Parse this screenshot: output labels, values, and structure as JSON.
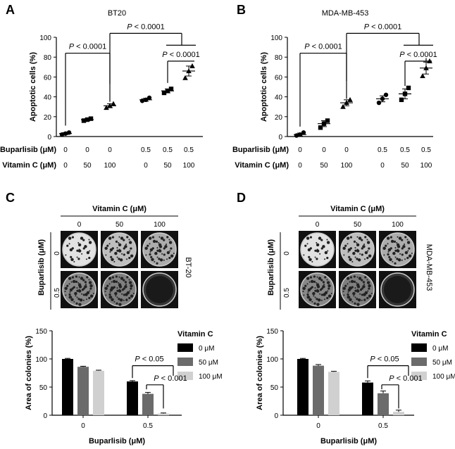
{
  "panels": {
    "A": {
      "letter": "A"
    },
    "B": {
      "letter": "B"
    },
    "C": {
      "letter": "C"
    },
    "D": {
      "letter": "D"
    }
  },
  "chart_data": [
    {
      "id": "A",
      "type": "scatter",
      "title": "BT20",
      "ylabel": "Apoptotic cells (%)",
      "ylim": [
        0,
        100
      ],
      "yticks": [
        0,
        20,
        40,
        60,
        80,
        100
      ],
      "row_labels": [
        "Buparlisib (μM)",
        "Vitamin C (μM)"
      ],
      "groups": [
        {
          "buparlisib": "0",
          "vitc": "0",
          "marker": "circle",
          "mean": 3,
          "sem": 1,
          "points": [
            2,
            3,
            4
          ]
        },
        {
          "buparlisib": "0",
          "vitc": "50",
          "marker": "square",
          "mean": 17,
          "sem": 1,
          "points": [
            16,
            17,
            18
          ]
        },
        {
          "buparlisib": "0",
          "vitc": "100",
          "marker": "triangle",
          "mean": 31,
          "sem": 2,
          "points": [
            29,
            31,
            33
          ]
        },
        {
          "buparlisib": "0.5",
          "vitc": "0",
          "marker": "circle",
          "mean": 37,
          "sem": 1.5,
          "points": [
            36,
            37,
            39
          ]
        },
        {
          "buparlisib": "0.5",
          "vitc": "50",
          "marker": "square",
          "mean": 46,
          "sem": 2,
          "points": [
            44,
            46,
            48
          ]
        },
        {
          "buparlisib": "0.5",
          "vitc": "100",
          "marker": "triangle",
          "mean": 66,
          "sem": 5,
          "points": [
            59,
            66,
            71
          ]
        }
      ],
      "annotations": [
        "P < 0.0001",
        "P < 0.0001",
        "P < 0.0001"
      ]
    },
    {
      "id": "B",
      "type": "scatter",
      "title": "MDA-MB-453",
      "ylabel": "Apoptotic cells (%)",
      "ylim": [
        0,
        100
      ],
      "yticks": [
        0,
        20,
        40,
        60,
        80,
        100
      ],
      "row_labels": [
        "Buparlisib (μM)",
        "Vitamin C (μM)"
      ],
      "groups": [
        {
          "buparlisib": "0",
          "vitc": "0",
          "marker": "circle",
          "mean": 2,
          "sem": 1.5,
          "points": [
            1,
            2,
            4
          ]
        },
        {
          "buparlisib": "0",
          "vitc": "50",
          "marker": "square",
          "mean": 13,
          "sem": 3,
          "points": [
            9,
            13,
            16
          ]
        },
        {
          "buparlisib": "0",
          "vitc": "100",
          "marker": "triangle",
          "mean": 34,
          "sem": 3,
          "points": [
            30,
            34,
            37
          ]
        },
        {
          "buparlisib": "0.5",
          "vitc": "0",
          "marker": "circle",
          "mean": 38,
          "sem": 3,
          "points": [
            34,
            38,
            42
          ]
        },
        {
          "buparlisib": "0.5",
          "vitc": "50",
          "marker": "square",
          "mean": 43,
          "sem": 5,
          "points": [
            37,
            43,
            49
          ]
        },
        {
          "buparlisib": "0.5",
          "vitc": "100",
          "marker": "triangle",
          "mean": 69,
          "sem": 6,
          "points": [
            61,
            69,
            76
          ]
        }
      ],
      "annotations": [
        "P < 0.0001",
        "P < 0.0001",
        "P < 0.0001"
      ]
    },
    {
      "id": "C",
      "type": "bar",
      "cell_line": "BT-20",
      "ylabel": "Area of colonies (%)",
      "xlabel": "Buparlisib (μM)",
      "ylim": [
        0,
        150
      ],
      "yticks": [
        0,
        50,
        100,
        150
      ],
      "categories": [
        "0",
        "0.5"
      ],
      "series": [
        {
          "name": "0 μM",
          "color": "#000000",
          "values": [
            100,
            60
          ],
          "errors": [
            1,
            1.5
          ]
        },
        {
          "name": "50 μM",
          "color": "#6b6b6b",
          "values": [
            86,
            38
          ],
          "errors": [
            1,
            2.5
          ]
        },
        {
          "name": "100 μM",
          "color": "#d0d0d0",
          "values": [
            79,
            3
          ],
          "errors": [
            1,
            1
          ]
        }
      ],
      "legend_title": "Vitamin C",
      "annotations": [
        "P < 0.05",
        "P < 0.001"
      ],
      "image_header": "Vitamin C (μM)",
      "image_cols": [
        "0",
        "50",
        "100"
      ],
      "image_row_label": "Buparlisib (μM)",
      "image_rows": [
        "0",
        "0.5"
      ]
    },
    {
      "id": "D",
      "type": "bar",
      "cell_line": "MDA-MB-453",
      "ylabel": "Area of colonies (%)",
      "xlabel": "Buparlisib (μM)",
      "ylim": [
        0,
        150
      ],
      "yticks": [
        0,
        50,
        100,
        150
      ],
      "categories": [
        "0",
        "0.5"
      ],
      "series": [
        {
          "name": "0 μM",
          "color": "#000000",
          "values": [
            100,
            58
          ],
          "errors": [
            1,
            3
          ]
        },
        {
          "name": "50 μM",
          "color": "#6b6b6b",
          "values": [
            88,
            39
          ],
          "errors": [
            2,
            4
          ]
        },
        {
          "name": "100 μM",
          "color": "#d0d0d0",
          "values": [
            77,
            6
          ],
          "errors": [
            1,
            3
          ]
        }
      ],
      "legend_title": "Vitamin C",
      "annotations": [
        "P < 0.05",
        "P < 0.001"
      ],
      "image_header": "Vitamin C (μM)",
      "image_cols": [
        "0",
        "50",
        "100"
      ],
      "image_row_label": "Buparlisib (μM)",
      "image_rows": [
        "0",
        "0.5"
      ]
    }
  ]
}
